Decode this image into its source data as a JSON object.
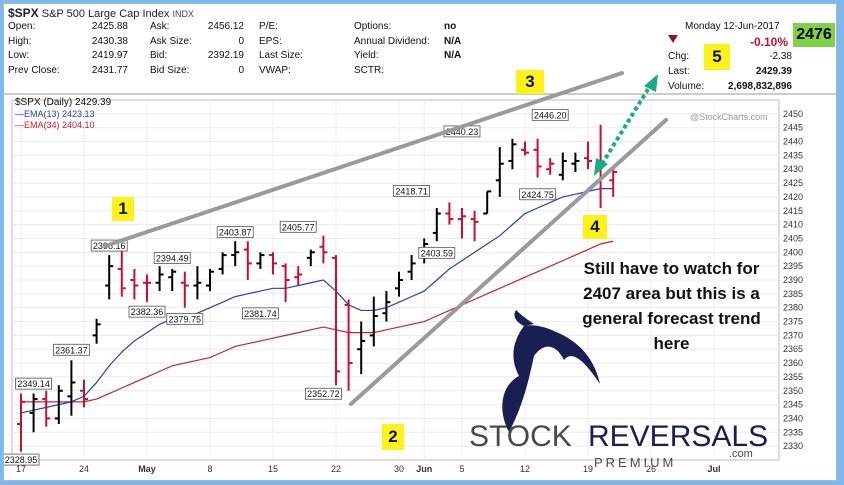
{
  "header": {
    "symbol": "$SPX",
    "name": "S&P 500 Large Cap Index",
    "exchange": "INDX",
    "date": "Monday  12-Jun-2017",
    "last_badge": "2476",
    "watermark": "@StockCharts.com",
    "quote": {
      "open_label": "Open:",
      "open": "2425.88",
      "high_label": "High:",
      "high": "2430.38",
      "low_label": "Low:",
      "low": "2419.97",
      "prev_label": "Prev Close:",
      "prev": "2431.77",
      "ask_label": "Ask:",
      "ask": "2456.12",
      "asksize_label": "Ask Size:",
      "asksize": "0",
      "bid_label": "Bid:",
      "bid": "2392.19",
      "bidsize_label": "Bid Size:",
      "bidsize": "0",
      "pe_label": "P/E:",
      "pe": "",
      "eps_label": "EPS:",
      "eps": "",
      "lastsize_label": "Last Size:",
      "lastsize": "",
      "vwap_label": "VWAP:",
      "vwap": "",
      "options_label": "Options:",
      "options": "no",
      "div_label": "Annual Dividend:",
      "div": "N/A",
      "yield_label": "Yield:",
      "yield": "N/A",
      "sctr_label": "SCTR:",
      "sctr": "",
      "pct_change": "-0.10%",
      "chg_label": "Chg:",
      "chg": "-2.38",
      "last_label": "Last:",
      "last": "2429.39",
      "volume_label": "Volume:",
      "volume": "2,698,832,896"
    }
  },
  "annotations": {
    "box1": "1",
    "box2": "2",
    "box3": "3",
    "box4": "4",
    "box5": "5",
    "note": "Still have to watch for 2407 area but this is a general forecast trend here"
  },
  "logo": {
    "word1": "STOCK",
    "word2": "REVERSALS",
    "sub": "PREMIUM",
    "dotcom": ".com"
  },
  "colors": {
    "up": "#000000",
    "down": "#c8102e",
    "ema13": "#2a3fb0",
    "ema34": "#d0202a",
    "trend": "#9a9a9a",
    "arrow": "#1aaa8a",
    "highlight": "#fff11a"
  },
  "chart_data": {
    "type": "ohlc",
    "legend": [
      {
        "name": "$SPX (Daily)",
        "value": "2429.39"
      },
      {
        "name": "EMA(13)",
        "value": "2423.13"
      },
      {
        "name": "EMA(34)",
        "value": "2404.10"
      }
    ],
    "ylim": [
      2325,
      2455
    ],
    "yticks": [
      2330,
      2335,
      2340,
      2345,
      2350,
      2355,
      2360,
      2365,
      2370,
      2375,
      2380,
      2385,
      2390,
      2395,
      2400,
      2405,
      2410,
      2415,
      2420,
      2425,
      2430,
      2435,
      2440,
      2445,
      2450
    ],
    "xticks": [
      {
        "label": "17",
        "i": 0
      },
      {
        "label": "24",
        "i": 5
      },
      {
        "label": "May",
        "i": 10
      },
      {
        "label": "8",
        "i": 15
      },
      {
        "label": "15",
        "i": 20
      },
      {
        "label": "22",
        "i": 25
      },
      {
        "label": "30",
        "i": 30
      },
      {
        "label": "Jun",
        "i": 32
      },
      {
        "label": "5",
        "i": 35
      },
      {
        "label": "12",
        "i": 40
      },
      {
        "label": "19",
        "i": 45
      },
      {
        "label": "26",
        "i": 50
      },
      {
        "label": "Jul",
        "i": 55
      }
    ],
    "bars": [
      {
        "o": 2338,
        "h": 2349,
        "l": 2328,
        "c": 2346,
        "d": 1
      },
      {
        "o": 2342,
        "h": 2349,
        "l": 2335,
        "c": 2347,
        "d": 0
      },
      {
        "o": 2347,
        "h": 2350,
        "l": 2337,
        "c": 2340,
        "d": 1
      },
      {
        "o": 2340,
        "h": 2352,
        "l": 2338,
        "c": 2350,
        "d": 0
      },
      {
        "o": 2348,
        "h": 2361,
        "l": 2341,
        "c": 2353,
        "d": 0
      },
      {
        "o": 2350,
        "h": 2354,
        "l": 2344,
        "c": 2347,
        "d": 1
      },
      {
        "o": 2370,
        "h": 2376,
        "l": 2367,
        "c": 2374,
        "d": 0
      },
      {
        "o": 2388,
        "h": 2399,
        "l": 2383,
        "c": 2395,
        "d": 0
      },
      {
        "o": 2394,
        "h": 2401,
        "l": 2384,
        "c": 2387,
        "d": 1
      },
      {
        "o": 2390,
        "h": 2394,
        "l": 2383,
        "c": 2388,
        "d": 1
      },
      {
        "o": 2389,
        "h": 2392,
        "l": 2382,
        "c": 2389,
        "d": 1
      },
      {
        "o": 2389,
        "h": 2395,
        "l": 2386,
        "c": 2392,
        "d": 0
      },
      {
        "o": 2391,
        "h": 2394,
        "l": 2386,
        "c": 2393,
        "d": 0
      },
      {
        "o": 2389,
        "h": 2393,
        "l": 2380,
        "c": 2388,
        "d": 1
      },
      {
        "o": 2388,
        "h": 2395,
        "l": 2383,
        "c": 2389,
        "d": 0
      },
      {
        "o": 2388,
        "h": 2394,
        "l": 2386,
        "c": 2393,
        "d": 0
      },
      {
        "o": 2394,
        "h": 2400,
        "l": 2392,
        "c": 2399,
        "d": 0
      },
      {
        "o": 2399,
        "h": 2404,
        "l": 2395,
        "c": 2400,
        "d": 0
      },
      {
        "o": 2401,
        "h": 2404,
        "l": 2390,
        "c": 2396,
        "d": 1
      },
      {
        "o": 2396,
        "h": 2400,
        "l": 2394,
        "c": 2399,
        "d": 0
      },
      {
        "o": 2399,
        "h": 2400,
        "l": 2392,
        "c": 2396,
        "d": 1
      },
      {
        "o": 2395,
        "h": 2396,
        "l": 2382,
        "c": 2390,
        "d": 1
      },
      {
        "o": 2391,
        "h": 2395,
        "l": 2388,
        "c": 2392,
        "d": 1
      },
      {
        "o": 2398,
        "h": 2401,
        "l": 2395,
        "c": 2400,
        "d": 0
      },
      {
        "o": 2402,
        "h": 2406,
        "l": 2396,
        "c": 2400,
        "d": 1
      },
      {
        "o": 2398,
        "h": 2399,
        "l": 2352,
        "c": 2357,
        "d": 1
      },
      {
        "o": 2381,
        "h": 2383,
        "l": 2350,
        "c": 2360,
        "d": 1
      },
      {
        "o": 2365,
        "h": 2375,
        "l": 2356,
        "c": 2368,
        "d": 0
      },
      {
        "o": 2370,
        "h": 2384,
        "l": 2366,
        "c": 2377,
        "d": 0
      },
      {
        "o": 2378,
        "h": 2386,
        "l": 2375,
        "c": 2382,
        "d": 0
      },
      {
        "o": 2387,
        "h": 2393,
        "l": 2384,
        "c": 2390,
        "d": 0
      },
      {
        "o": 2393,
        "h": 2399,
        "l": 2390,
        "c": 2396,
        "d": 0
      },
      {
        "o": 2399,
        "h": 2405,
        "l": 2396,
        "c": 2403,
        "d": 0
      },
      {
        "o": 2407,
        "h": 2416,
        "l": 2404,
        "c": 2414,
        "d": 0
      },
      {
        "o": 2414,
        "h": 2418,
        "l": 2410,
        "c": 2412,
        "d": 1
      },
      {
        "o": 2412,
        "h": 2416,
        "l": 2405,
        "c": 2413,
        "d": 1
      },
      {
        "o": 2412,
        "h": 2415,
        "l": 2404,
        "c": 2411,
        "d": 1
      },
      {
        "o": 2414,
        "h": 2422,
        "l": 2414,
        "c": 2422,
        "d": 0
      },
      {
        "o": 2426,
        "h": 2438,
        "l": 2420,
        "c": 2432,
        "d": 0
      },
      {
        "o": 2433,
        "h": 2441,
        "l": 2430,
        "c": 2439,
        "d": 0
      },
      {
        "o": 2437,
        "h": 2440,
        "l": 2435,
        "c": 2436,
        "d": 1
      },
      {
        "o": 2437,
        "h": 2441,
        "l": 2427,
        "c": 2431,
        "d": 1
      },
      {
        "o": 2430,
        "h": 2434,
        "l": 2428,
        "c": 2432,
        "d": 1
      },
      {
        "o": 2428,
        "h": 2436,
        "l": 2426,
        "c": 2433,
        "d": 0
      },
      {
        "o": 2432,
        "h": 2436,
        "l": 2429,
        "c": 2433,
        "d": 0
      },
      {
        "o": 2434,
        "h": 2440,
        "l": 2430,
        "c": 2433,
        "d": 1
      },
      {
        "o": 2433,
        "h": 2446,
        "l": 2416,
        "c": 2432,
        "d": 1
      },
      {
        "o": 2426,
        "h": 2430,
        "l": 2420,
        "c": 2429,
        "d": 1
      }
    ],
    "ema13": [
      2342,
      2343,
      2344,
      2345,
      2346,
      2348,
      2353,
      2359,
      2364,
      2368,
      2371,
      2374,
      2376,
      2377,
      2378,
      2380,
      2382,
      2384,
      2385,
      2386,
      2387,
      2387,
      2388,
      2389,
      2390,
      2386,
      2381,
      2379,
      2379,
      2380,
      2382,
      2384,
      2386,
      2390,
      2394,
      2397,
      2400,
      2403,
      2406,
      2410,
      2414,
      2416,
      2418,
      2420,
      2421,
      2422,
      2423,
      2423
    ],
    "ema34": [
      2346,
      2346,
      2346,
      2346,
      2346,
      2346,
      2347,
      2349,
      2351,
      2353,
      2355,
      2357,
      2359,
      2360,
      2361,
      2362,
      2364,
      2366,
      2367,
      2368,
      2369,
      2370,
      2371,
      2372,
      2373,
      2372,
      2371,
      2371,
      2371,
      2372,
      2373,
      2374,
      2375,
      2377,
      2379,
      2381,
      2383,
      2385,
      2387,
      2389,
      2391,
      2393,
      2395,
      2397,
      2399,
      2401,
      2403,
      2404
    ],
    "labels": [
      {
        "text": "2328.95",
        "i": 0,
        "v": 2328.95,
        "pos": "below"
      },
      {
        "text": "2349.14",
        "i": 1,
        "v": 2349.14,
        "pos": "above"
      },
      {
        "text": "2361.37",
        "i": 4,
        "v": 2361.37,
        "pos": "above"
      },
      {
        "text": "2398.16",
        "i": 7,
        "v": 2399,
        "pos": "above"
      },
      {
        "text": "2382.36",
        "i": 10,
        "v": 2382.36,
        "pos": "below"
      },
      {
        "text": "2394.49",
        "i": 12,
        "v": 2394.49,
        "pos": "above"
      },
      {
        "text": "2379.75",
        "i": 13,
        "v": 2379.75,
        "pos": "below"
      },
      {
        "text": "2403.87",
        "i": 17,
        "v": 2403.87,
        "pos": "above"
      },
      {
        "text": "2381.74",
        "i": 19,
        "v": 2381.74,
        "pos": "below"
      },
      {
        "text": "2405.77",
        "i": 22,
        "v": 2405.77,
        "pos": "above"
      },
      {
        "text": "2352.72",
        "i": 24,
        "v": 2352.72,
        "pos": "below"
      },
      {
        "text": "2418.71",
        "i": 31,
        "v": 2418.71,
        "pos": "above"
      },
      {
        "text": "2403.59",
        "i": 33,
        "v": 2403.59,
        "pos": "below"
      },
      {
        "text": "2440.23",
        "i": 35,
        "v": 2440.23,
        "pos": "above"
      },
      {
        "text": "2424.75",
        "i": 41,
        "v": 2424.75,
        "pos": "below"
      },
      {
        "text": "2446.20",
        "i": 42,
        "v": 2446.2,
        "pos": "above"
      }
    ]
  }
}
